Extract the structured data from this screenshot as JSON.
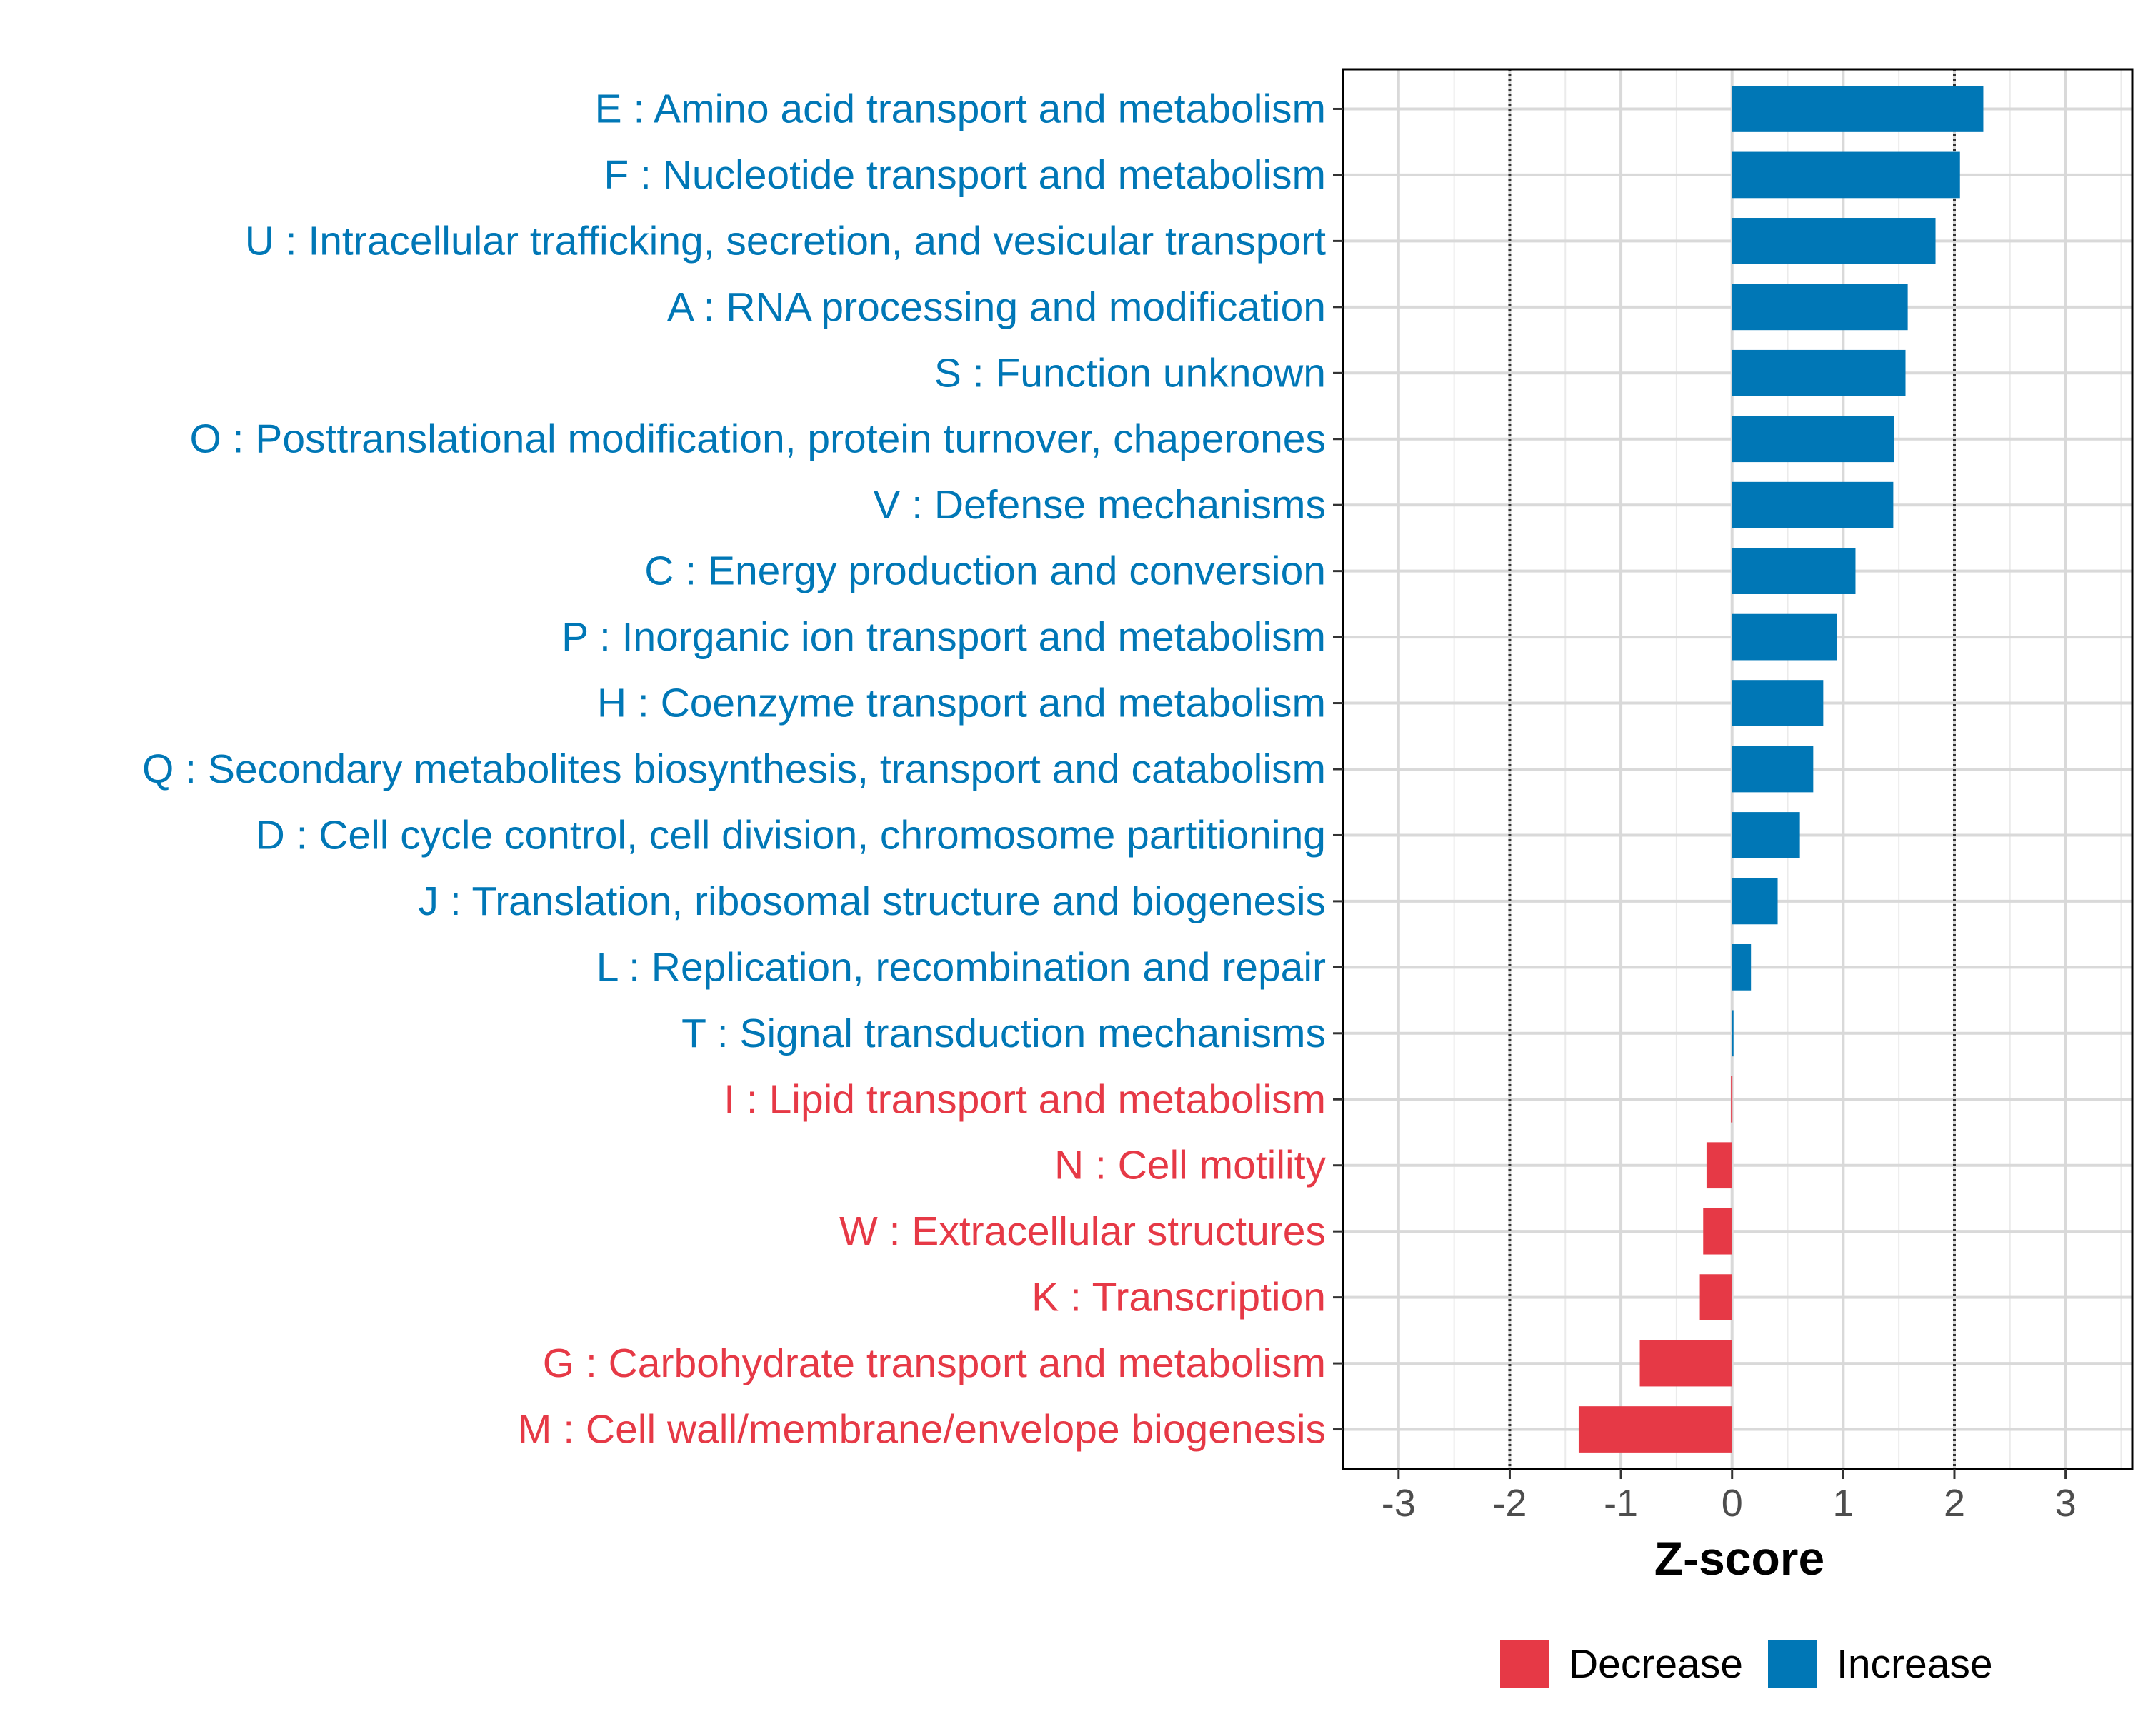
{
  "chart_data": {
    "type": "bar",
    "orientation": "horizontal",
    "xlabel": "Z-score",
    "xlim": [
      -3.5,
      3.6
    ],
    "xticks": [
      -3,
      -2,
      -1,
      0,
      1,
      2,
      3
    ],
    "xtick_labels": [
      "-3",
      "-2",
      "-1",
      "0",
      "1",
      "2",
      "3"
    ],
    "reference_lines": [
      -2,
      2
    ],
    "grid": true,
    "legend_position": "bottom",
    "colors": {
      "Decrease": "#e63946",
      "Increase": "#0077b6"
    },
    "legend": [
      {
        "label": "Decrease",
        "color": "#e63946"
      },
      {
        "label": "Increase",
        "color": "#0077b6"
      }
    ],
    "categories": [
      "E : Amino acid transport and metabolism",
      "F : Nucleotide transport and metabolism",
      "U : Intracellular trafficking, secretion, and vesicular transport",
      "A : RNA processing and modification",
      "S : Function unknown",
      "O : Posttranslational modification, protein turnover, chaperones",
      "V : Defense mechanisms",
      "C : Energy production and conversion",
      "P : Inorganic ion transport and metabolism",
      "H : Coenzyme transport and metabolism",
      "Q : Secondary metabolites biosynthesis, transport and catabolism",
      "D : Cell cycle control, cell division, chromosome partitioning",
      "J : Translation, ribosomal structure and biogenesis",
      "L : Replication, recombination and repair",
      "T : Signal transduction mechanisms",
      "I : Lipid transport and metabolism",
      "N : Cell motility",
      "W : Extracellular structures",
      "K : Transcription",
      "G : Carbohydrate transport and metabolism",
      "M : Cell wall/membrane/envelope biogenesis"
    ],
    "values": [
      2.26,
      2.05,
      1.83,
      1.58,
      1.56,
      1.46,
      1.45,
      1.11,
      0.94,
      0.82,
      0.73,
      0.61,
      0.41,
      0.17,
      0.01,
      -0.01,
      -0.23,
      -0.26,
      -0.29,
      -0.83,
      -1.38
    ],
    "groups": [
      "Increase",
      "Increase",
      "Increase",
      "Increase",
      "Increase",
      "Increase",
      "Increase",
      "Increase",
      "Increase",
      "Increase",
      "Increase",
      "Increase",
      "Increase",
      "Increase",
      "Increase",
      "Decrease",
      "Decrease",
      "Decrease",
      "Decrease",
      "Decrease",
      "Decrease"
    ]
  }
}
